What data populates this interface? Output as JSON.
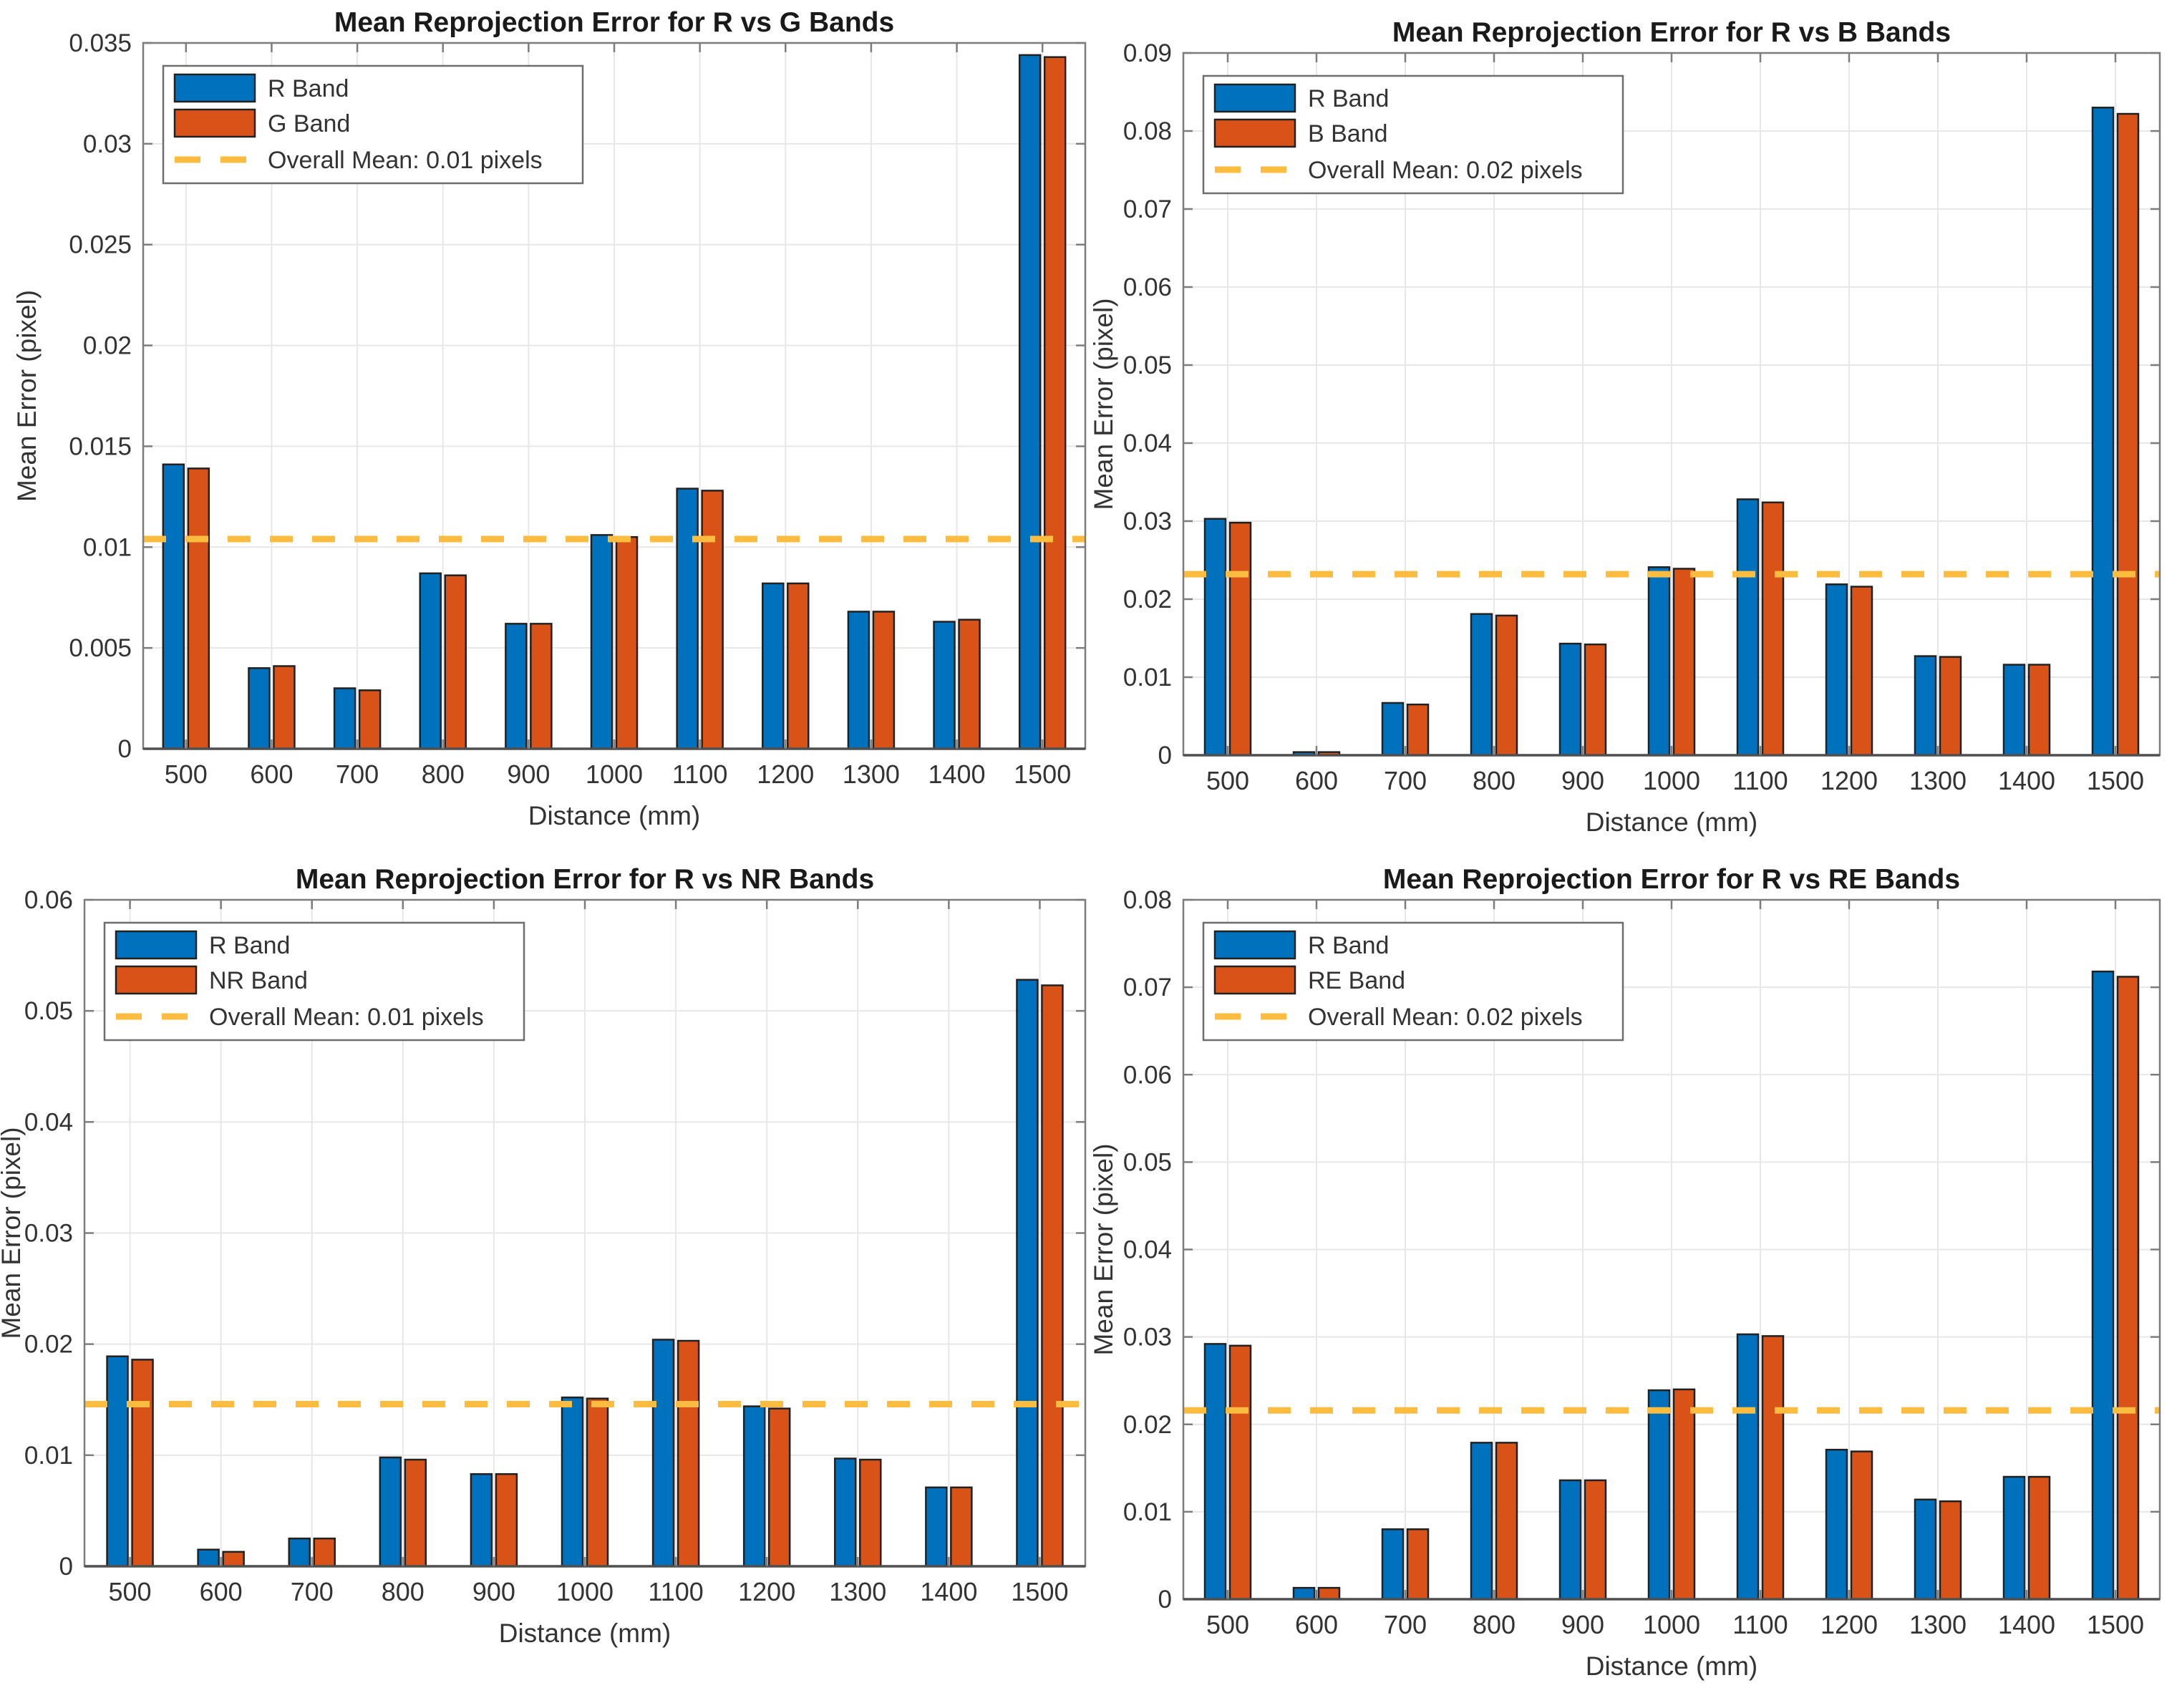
{
  "figure": {
    "background": "#ffffff",
    "description": "2x2 grid of MATLAB-style grouped bar charts of mean reprojection error vs distance"
  },
  "style": {
    "bar_blue": "#0072BD",
    "bar_orange": "#D95319",
    "mean_line_color": "#FBBC3F",
    "bar_edge": "#212121",
    "grid_color": "#E7E7E7",
    "box_color": "#7D7D7D",
    "baseline_color": "#4F4F4F",
    "tick_label_color": "#333333",
    "title_color": "#1A1A1A",
    "legend_border": "#6E6E6E",
    "legend_bg": "#FFFFFF"
  },
  "chart_data": [
    {
      "type": "bar",
      "title": "Mean Reprojection Error for R vs G Bands",
      "xlabel": "Distance (mm)",
      "ylabel": "Mean Error (pixel)",
      "categories": [
        "500",
        "600",
        "700",
        "800",
        "900",
        "1000",
        "1100",
        "1200",
        "1300",
        "1400",
        "1500"
      ],
      "series": [
        {
          "name": "R Band",
          "color_key": "bar_blue",
          "values": [
            0.0141,
            0.004,
            0.003,
            0.0087,
            0.0062,
            0.0106,
            0.0129,
            0.0082,
            0.0068,
            0.0063,
            0.0344
          ]
        },
        {
          "name": "G Band",
          "color_key": "bar_orange",
          "values": [
            0.0139,
            0.0041,
            0.0029,
            0.0086,
            0.0062,
            0.0105,
            0.0128,
            0.0082,
            0.0068,
            0.0064,
            0.0343
          ]
        }
      ],
      "mean_line": {
        "value": 0.0104,
        "label": "Overall Mean: 0.01 pixels"
      },
      "ylim": [
        0,
        0.035
      ],
      "ytick_step": 0.005,
      "ytick_labels": [
        "0",
        "0.005",
        "0.01",
        "0.015",
        "0.02",
        "0.025",
        "0.03",
        "0.035"
      ],
      "grid": true,
      "legend_position": "upper-left"
    },
    {
      "type": "bar",
      "title": "Mean Reprojection Error for R vs B Bands",
      "xlabel": "Distance (mm)",
      "ylabel": "Mean Error (pixel)",
      "categories": [
        "500",
        "600",
        "700",
        "800",
        "900",
        "1000",
        "1100",
        "1200",
        "1300",
        "1400",
        "1500"
      ],
      "series": [
        {
          "name": "R Band",
          "color_key": "bar_blue",
          "values": [
            0.0303,
            0.0004,
            0.0067,
            0.0181,
            0.0143,
            0.0241,
            0.0328,
            0.0219,
            0.0127,
            0.0116,
            0.083
          ]
        },
        {
          "name": "B Band",
          "color_key": "bar_orange",
          "values": [
            0.0298,
            0.0004,
            0.0065,
            0.0179,
            0.0142,
            0.0239,
            0.0324,
            0.0216,
            0.0126,
            0.0116,
            0.0822
          ]
        }
      ],
      "mean_line": {
        "value": 0.0232,
        "label": "Overall Mean: 0.02 pixels"
      },
      "ylim": [
        0,
        0.09
      ],
      "ytick_step": 0.01,
      "ytick_labels": [
        "0",
        "0.01",
        "0.02",
        "0.03",
        "0.04",
        "0.05",
        "0.06",
        "0.07",
        "0.08",
        "0.09"
      ],
      "grid": true,
      "legend_position": "upper-left"
    },
    {
      "type": "bar",
      "title": "Mean Reprojection Error for R vs NR Bands",
      "xlabel": "Distance (mm)",
      "ylabel": "Mean Error (pixel)",
      "categories": [
        "500",
        "600",
        "700",
        "800",
        "900",
        "1000",
        "1100",
        "1200",
        "1300",
        "1400",
        "1500"
      ],
      "series": [
        {
          "name": "R Band",
          "color_key": "bar_blue",
          "values": [
            0.0189,
            0.0015,
            0.0025,
            0.0098,
            0.0083,
            0.0152,
            0.0204,
            0.0144,
            0.0097,
            0.0071,
            0.0528
          ]
        },
        {
          "name": "NR Band",
          "color_key": "bar_orange",
          "values": [
            0.0186,
            0.0013,
            0.0025,
            0.0096,
            0.0083,
            0.0151,
            0.0203,
            0.0142,
            0.0096,
            0.0071,
            0.0523
          ]
        }
      ],
      "mean_line": {
        "value": 0.0146,
        "label": "Overall Mean: 0.01 pixels"
      },
      "ylim": [
        0,
        0.06
      ],
      "ytick_step": 0.01,
      "ytick_labels": [
        "0",
        "0.01",
        "0.02",
        "0.03",
        "0.04",
        "0.05",
        "0.06"
      ],
      "grid": true,
      "legend_position": "upper-left"
    },
    {
      "type": "bar",
      "title": "Mean Reprojection Error for R vs RE Bands",
      "xlabel": "Distance (mm)",
      "ylabel": "Mean Error (pixel)",
      "categories": [
        "500",
        "600",
        "700",
        "800",
        "900",
        "1000",
        "1100",
        "1200",
        "1300",
        "1400",
        "1500"
      ],
      "series": [
        {
          "name": "R Band",
          "color_key": "bar_blue",
          "values": [
            0.0292,
            0.0013,
            0.008,
            0.0179,
            0.0136,
            0.0239,
            0.0303,
            0.0171,
            0.0114,
            0.014,
            0.0718
          ]
        },
        {
          "name": "RE Band",
          "color_key": "bar_orange",
          "values": [
            0.029,
            0.0013,
            0.008,
            0.0179,
            0.0136,
            0.024,
            0.0301,
            0.0169,
            0.0112,
            0.014,
            0.0712
          ]
        }
      ],
      "mean_line": {
        "value": 0.0216,
        "label": "Overall Mean: 0.02 pixels"
      },
      "ylim": [
        0,
        0.08
      ],
      "ytick_step": 0.01,
      "ytick_labels": [
        "0",
        "0.01",
        "0.02",
        "0.03",
        "0.04",
        "0.05",
        "0.06",
        "0.07",
        "0.08"
      ],
      "grid": true,
      "legend_position": "upper-left"
    }
  ]
}
